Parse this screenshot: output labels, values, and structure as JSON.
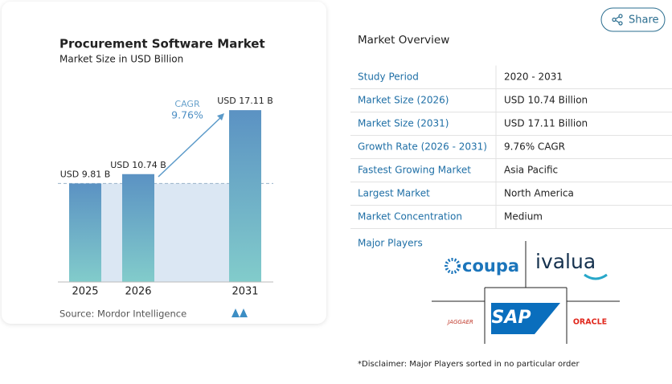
{
  "chart_data": {
    "type": "bar",
    "title": "Procurement Software Market",
    "subtitle": "Market Size in USD Billion",
    "categories": [
      "2025",
      "2026",
      "2031"
    ],
    "values": [
      9.81,
      10.74,
      17.11
    ],
    "value_labels": [
      "USD 9.81 B",
      "USD 10.74 B",
      "USD 17.11 B"
    ],
    "color_top": "#5b92c3",
    "color_bottom": "#82cccb",
    "annotation": {
      "label": "CAGR",
      "value": "9.76%"
    },
    "source": "Source: Mordor Intelligence"
  },
  "share": "Share",
  "overview": {
    "title": "Market Overview",
    "rows": [
      [
        "Study Period",
        "2020 - 2031"
      ],
      [
        "Market Size (2026)",
        "USD 10.74 Billion"
      ],
      [
        "Market Size (2031)",
        "USD 17.11 Billion"
      ],
      [
        "Growth Rate (2026 - 2031)",
        "9.76% CAGR"
      ],
      [
        "Fastest Growing Market",
        "Asia Pacific"
      ],
      [
        "Largest Market",
        "North America"
      ],
      [
        "Market Concentration",
        "Medium"
      ]
    ],
    "players_label": "Major Players",
    "players": [
      "coupa",
      "ivalua",
      "SAP",
      "JAGGAER",
      "ORACLE"
    ],
    "disclaimer": "*Disclaimer: Major Players sorted in no particular order"
  }
}
